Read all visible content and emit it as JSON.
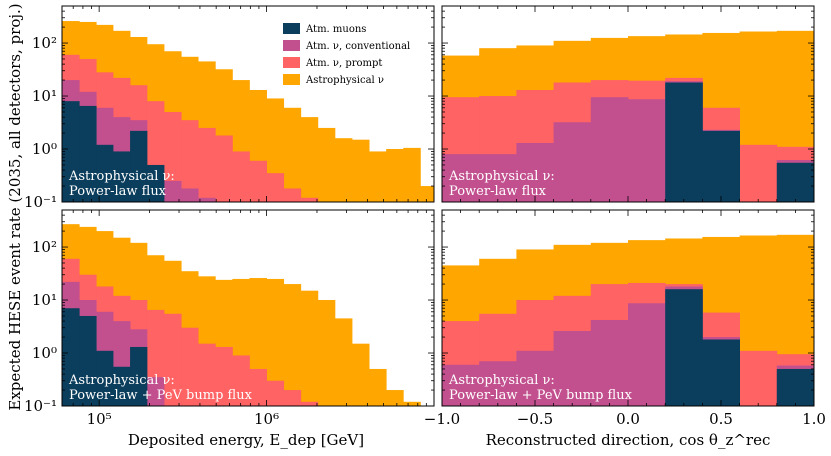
{
  "colors": {
    "muons": "#0b3d5c",
    "conventional": "#c2508f",
    "prompt": "#ff6363",
    "astro": "#ffa600"
  },
  "legend": [
    {
      "key": "muons",
      "label": "Atm. muons"
    },
    {
      "key": "conventional",
      "label": "Atm. ν, conventional"
    },
    {
      "key": "prompt",
      "label": "Atm. ν, prompt"
    },
    {
      "key": "astro",
      "label": "Astrophysical ν"
    }
  ],
  "ylabel": "Expected HESE event rate (2035, all detectors, proj.)",
  "xlabel_left": "Deposited energy, E_dep [GeV]",
  "xlabel_right": "Reconstructed direction, cos θ_z^rec",
  "annotations": {
    "top": [
      "Astrophysical ν:",
      "Power-law flux"
    ],
    "bottom": [
      "Astrophysical ν:",
      "Power-law + PeV bump flux"
    ]
  },
  "chart_data": [
    {
      "panel": "top-left",
      "type": "area",
      "scale_x": "log",
      "scale_y": "log",
      "xlim": [
        60000,
        10000000
      ],
      "ylim": [
        0.1,
        500
      ],
      "energy_bin_edges": [
        60000,
        76000,
        96000,
        121000,
        153000,
        193000,
        244000,
        309000,
        390000,
        494000,
        625000,
        790000,
        1000000,
        1265000,
        1600000,
        2024000,
        2560000,
        3238000,
        4096000,
        5181000,
        6554000,
        8290000,
        10000000
      ],
      "series": [
        {
          "name": "Atm. muons",
          "values": [
            8,
            6.5,
            1.2,
            0.9,
            2.2,
            0.5,
            0,
            0,
            0,
            0,
            0,
            0,
            0,
            0,
            0,
            0,
            0,
            0,
            0,
            0,
            0,
            0
          ]
        },
        {
          "name": "Atm. ν, conventional",
          "values": [
            20,
            12,
            6,
            4,
            3.5,
            0.5,
            0.25,
            0.18,
            0.12,
            0,
            0,
            0,
            0,
            0,
            0,
            0,
            0,
            0,
            0,
            0,
            0,
            0
          ]
        },
        {
          "name": "Atm. ν, prompt",
          "values": [
            60,
            50,
            28,
            22,
            16,
            8,
            5,
            3.5,
            2.5,
            1.8,
            0.9,
            0.6,
            0.35,
            0.18,
            0.12,
            0,
            0,
            0,
            0,
            0,
            0,
            0
          ]
        },
        {
          "name": "Astrophysical ν",
          "values": [
            260,
            250,
            220,
            170,
            130,
            95,
            70,
            55,
            45,
            32,
            20,
            13,
            9,
            6,
            4,
            2.5,
            1.6,
            1.5,
            0.9,
            1.0,
            1.05,
            0.2
          ]
        }
      ]
    },
    {
      "panel": "top-right",
      "type": "area",
      "xlim": [
        -1.0,
        1.0
      ],
      "ylim": [
        0.1,
        500
      ],
      "cos_bin_edges": [
        -1.0,
        -0.8,
        -0.6,
        -0.4,
        -0.2,
        0.0,
        0.2,
        0.4,
        0.6,
        0.8,
        1.0
      ],
      "series": [
        {
          "name": "Atm. muons",
          "values": [
            0,
            0,
            0,
            0,
            0,
            0,
            18,
            2.2,
            0,
            0.55
          ]
        },
        {
          "name": "Atm. ν, conventional",
          "values": [
            0.8,
            0.8,
            1.3,
            3.2,
            9.5,
            8.7,
            19,
            2.3,
            0.1,
            0.62
          ]
        },
        {
          "name": "Atm. ν, prompt",
          "values": [
            9.5,
            10,
            13,
            18,
            20,
            19.5,
            22,
            6,
            1.2,
            1.1
          ]
        },
        {
          "name": "Astrophysical ν",
          "values": [
            58,
            80,
            90,
            110,
            125,
            135,
            145,
            155,
            165,
            170
          ]
        }
      ]
    },
    {
      "panel": "bottom-left",
      "type": "area",
      "scale_x": "log",
      "scale_y": "log",
      "xlim": [
        60000,
        10000000
      ],
      "ylim": [
        0.1,
        500
      ],
      "energy_bin_edges": [
        60000,
        76000,
        96000,
        121000,
        153000,
        193000,
        244000,
        309000,
        390000,
        494000,
        625000,
        790000,
        1000000,
        1265000,
        1600000,
        2024000,
        2560000,
        3238000,
        4096000,
        5181000,
        6554000,
        8290000,
        10000000
      ],
      "series": [
        {
          "name": "Atm. muons",
          "values": [
            7,
            5,
            1.1,
            0.55,
            1.3,
            0,
            0,
            0,
            0,
            0,
            0,
            0,
            0,
            0,
            0,
            0,
            0,
            0,
            0,
            0,
            0,
            0
          ]
        },
        {
          "name": "Atm. ν, conventional",
          "values": [
            22,
            10,
            6,
            4,
            2.8,
            0.35,
            0,
            0,
            0,
            0,
            0,
            0,
            0,
            0,
            0,
            0,
            0,
            0,
            0,
            0,
            0,
            0
          ]
        },
        {
          "name": "Atm. ν, prompt",
          "values": [
            60,
            30,
            18,
            12,
            10,
            6.5,
            5.5,
            3,
            1.5,
            1.3,
            0.9,
            0.5,
            0.3,
            0.2,
            0.12,
            0,
            0,
            0,
            0,
            0,
            0,
            0
          ]
        },
        {
          "name": "Astrophysical ν",
          "values": [
            270,
            240,
            200,
            150,
            120,
            70,
            55,
            35,
            28,
            24,
            25,
            26,
            25,
            20,
            15,
            10,
            4.5,
            1.5,
            0.5,
            0.2,
            0.12,
            0.1
          ]
        }
      ]
    },
    {
      "panel": "bottom-right",
      "type": "area",
      "xlim": [
        -1.0,
        1.0
      ],
      "ylim": [
        0.1,
        500
      ],
      "cos_bin_edges": [
        -1.0,
        -0.8,
        -0.6,
        -0.4,
        -0.2,
        0.0,
        0.2,
        0.4,
        0.6,
        0.8,
        1.0
      ],
      "series": [
        {
          "name": "Atm. muons",
          "values": [
            0,
            0,
            0,
            0,
            0,
            0,
            16,
            1.8,
            0,
            0.5
          ]
        },
        {
          "name": "Atm. ν, conventional",
          "values": [
            0.6,
            0.7,
            1.1,
            2.6,
            4.2,
            8.7,
            18,
            2.0,
            0.1,
            0.58
          ]
        },
        {
          "name": "Atm. ν, prompt",
          "values": [
            4,
            5.5,
            10,
            12,
            20,
            21,
            20,
            5.8,
            1.1,
            0.95
          ]
        },
        {
          "name": "Astrophysical ν",
          "values": [
            45,
            60,
            90,
            110,
            120,
            135,
            145,
            155,
            165,
            170
          ]
        }
      ]
    }
  ],
  "axes": {
    "y_ticks": [
      {
        "v": 0.1,
        "label": "10⁻¹"
      },
      {
        "v": 1,
        "label": "10⁰"
      },
      {
        "v": 10,
        "label": "10¹"
      },
      {
        "v": 100,
        "label": "10²"
      }
    ],
    "energy_ticks": [
      {
        "v": 100000,
        "label": "10⁵"
      },
      {
        "v": 1000000,
        "label": "10⁶"
      }
    ],
    "cos_ticks": [
      {
        "v": -1.0,
        "label": "−1.0"
      },
      {
        "v": -0.5,
        "label": "−0.5"
      },
      {
        "v": 0.0,
        "label": "0.0"
      },
      {
        "v": 0.5,
        "label": "0.5"
      },
      {
        "v": 1.0,
        "label": "1.0"
      }
    ]
  }
}
